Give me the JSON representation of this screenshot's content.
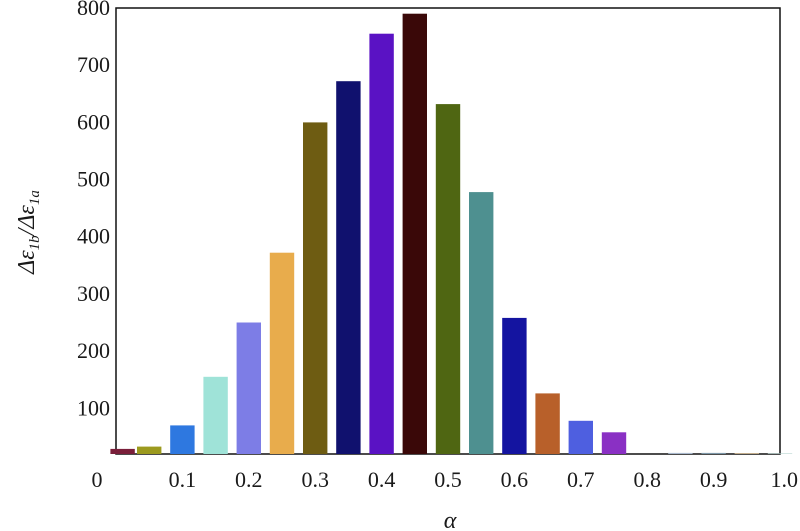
{
  "chart_data": {
    "type": "bar",
    "xlabel": "α",
    "ylabel": "Δε1b/Δε1a",
    "ylabel_parts": {
      "num_base": "Δε",
      "num_sub": "1b",
      "slash": "/",
      "den_base": "Δε",
      "den_sub": "1a"
    },
    "xlim": [
      0,
      1.0
    ],
    "ylim": [
      20,
      800
    ],
    "x_ticks": [
      0,
      0.1,
      0.2,
      0.3,
      0.4,
      0.5,
      0.6,
      0.7,
      0.8,
      0.9,
      1.0
    ],
    "x_tick_labels": [
      "0",
      "0.1",
      "0.2",
      "0.3",
      "0.4",
      "0.5",
      "0.6",
      "0.7",
      "0.8",
      "0.9",
      "1.0"
    ],
    "y_ticks": [
      100,
      200,
      300,
      400,
      500,
      600,
      700,
      800
    ],
    "y_tick_labels": [
      "100",
      "200",
      "300",
      "400",
      "500",
      "600",
      "700",
      "800"
    ],
    "grid": false,
    "bar_width": 0.04,
    "bars": [
      {
        "x": 0.01,
        "value": 29,
        "color": "#7a1f3a"
      },
      {
        "x": 0.05,
        "value": 33,
        "color": "#9c9a1e"
      },
      {
        "x": 0.1,
        "value": 70,
        "color": "#2e78e0"
      },
      {
        "x": 0.15,
        "value": 155,
        "color": "#9fe3d8"
      },
      {
        "x": 0.2,
        "value": 250,
        "color": "#7d7de6"
      },
      {
        "x": 0.25,
        "value": 372,
        "color": "#e8ac4c"
      },
      {
        "x": 0.3,
        "value": 600,
        "color": "#6e5c12"
      },
      {
        "x": 0.35,
        "value": 672,
        "color": "#10116e"
      },
      {
        "x": 0.4,
        "value": 755,
        "color": "#5a12c4"
      },
      {
        "x": 0.45,
        "value": 790,
        "color": "#3a0808"
      },
      {
        "x": 0.5,
        "value": 632,
        "color": "#4f6612"
      },
      {
        "x": 0.55,
        "value": 478,
        "color": "#4e9090"
      },
      {
        "x": 0.6,
        "value": 258,
        "color": "#1414a0"
      },
      {
        "x": 0.65,
        "value": 126,
        "color": "#b8602a"
      },
      {
        "x": 0.7,
        "value": 78,
        "color": "#4e5fe0"
      },
      {
        "x": 0.75,
        "value": 58,
        "color": "#8a30c4"
      },
      {
        "x": 0.85,
        "value": 22,
        "color": "#a9b8cc"
      },
      {
        "x": 0.9,
        "value": 22,
        "color": "#7e98a8"
      },
      {
        "x": 0.95,
        "value": 21,
        "color": "#e8c690"
      },
      {
        "x": 1.0,
        "value": 21,
        "color": "#b8d4d0"
      }
    ]
  }
}
